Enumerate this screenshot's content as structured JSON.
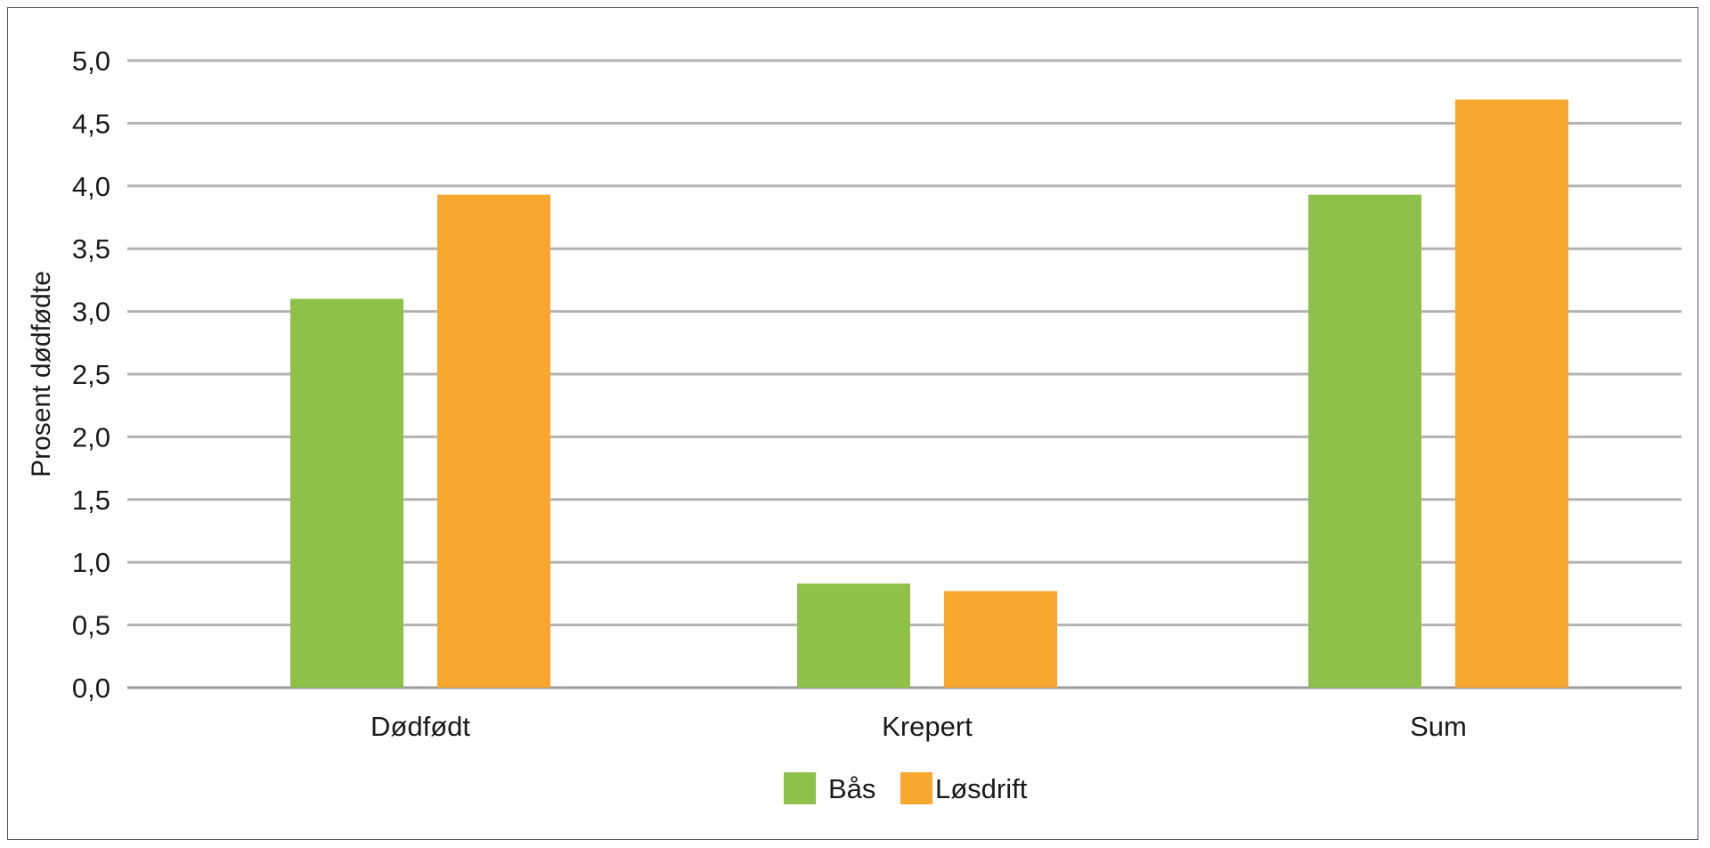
{
  "chart_data": {
    "type": "bar",
    "title": "",
    "xlabel": "",
    "ylabel": "Prosent dødfødte",
    "categories": [
      "Dødfødt",
      "Krepert",
      "Sum"
    ],
    "series": [
      {
        "name": "Bås",
        "color": "#8dc149",
        "values": [
          3.1,
          0.83,
          3.93
        ]
      },
      {
        "name": "Løsdrift",
        "color": "#f7a72e",
        "values": [
          3.93,
          0.77,
          4.69
        ]
      }
    ],
    "ylim": [
      0,
      5
    ],
    "yticks": [
      0,
      0.5,
      1,
      1.5,
      2,
      2.5,
      3,
      3.5,
      4,
      4.5,
      5
    ],
    "ytick_labels": [
      "0,0",
      "0,5",
      "1,0",
      "1,5",
      "2,0",
      "2,5",
      "3,0",
      "3,5",
      "4,0",
      "4,5",
      "5,0"
    ],
    "grid": true,
    "legend_position": "bottom-center",
    "gridline_color": "#b3b3b3",
    "frame_color": "#555555"
  }
}
